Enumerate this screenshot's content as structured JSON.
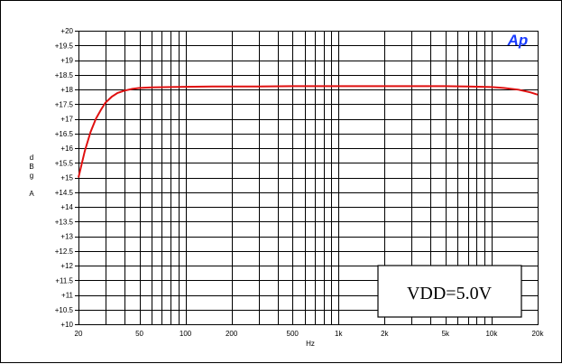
{
  "chart_data": {
    "type": "line",
    "title": "",
    "xlabel": "Hz",
    "ylabel_lines": [
      "d",
      "B",
      "g",
      "",
      "A"
    ],
    "x_scale": "log",
    "xlim": [
      20,
      20000
    ],
    "ylim": [
      10,
      20
    ],
    "grid": true,
    "x_ticks": [
      {
        "value": 20,
        "label": "20"
      },
      {
        "value": 50,
        "label": "50"
      },
      {
        "value": 100,
        "label": "100"
      },
      {
        "value": 200,
        "label": "200"
      },
      {
        "value": 500,
        "label": "500"
      },
      {
        "value": 1000,
        "label": "1k"
      },
      {
        "value": 2000,
        "label": "2k"
      },
      {
        "value": 5000,
        "label": "5k"
      },
      {
        "value": 10000,
        "label": "10k"
      },
      {
        "value": 20000,
        "label": "20k"
      }
    ],
    "y_ticks": [
      {
        "value": 20,
        "label": "+20"
      },
      {
        "value": 19.5,
        "label": "+19.5"
      },
      {
        "value": 19,
        "label": "+19"
      },
      {
        "value": 18.5,
        "label": "+18.5"
      },
      {
        "value": 18,
        "label": "+18"
      },
      {
        "value": 17.5,
        "label": "+17.5"
      },
      {
        "value": 17,
        "label": "+17"
      },
      {
        "value": 16.5,
        "label": "+16.5"
      },
      {
        "value": 16,
        "label": "+16"
      },
      {
        "value": 15.5,
        "label": "+15.5"
      },
      {
        "value": 15,
        "label": "+15"
      },
      {
        "value": 14.5,
        "label": "+14.5"
      },
      {
        "value": 14,
        "label": "+14"
      },
      {
        "value": 13.5,
        "label": "+13.5"
      },
      {
        "value": 13,
        "label": "+13"
      },
      {
        "value": 12.5,
        "label": "+12.5"
      },
      {
        "value": 12,
        "label": "+12"
      },
      {
        "value": 11.5,
        "label": "+11.5"
      },
      {
        "value": 11,
        "label": "+11"
      },
      {
        "value": 10.5,
        "label": "+10.5"
      },
      {
        "value": 10,
        "label": "+10"
      }
    ],
    "series": [
      {
        "color": "#e01010",
        "x": [
          20,
          22,
          24,
          26,
          28,
          30,
          33,
          36,
          40,
          45,
          50,
          60,
          80,
          100,
          150,
          200,
          300,
          500,
          1000,
          2000,
          5000,
          7000,
          10000,
          12000,
          15000,
          18000,
          20000
        ],
        "y": [
          15.0,
          15.9,
          16.55,
          17.0,
          17.3,
          17.55,
          17.75,
          17.88,
          17.96,
          18.02,
          18.05,
          18.07,
          18.08,
          18.09,
          18.1,
          18.1,
          18.1,
          18.11,
          18.11,
          18.11,
          18.11,
          18.1,
          18.08,
          18.05,
          17.99,
          17.9,
          17.82
        ]
      }
    ],
    "annotation": "VDD=5.0V",
    "logo": "Ap"
  }
}
